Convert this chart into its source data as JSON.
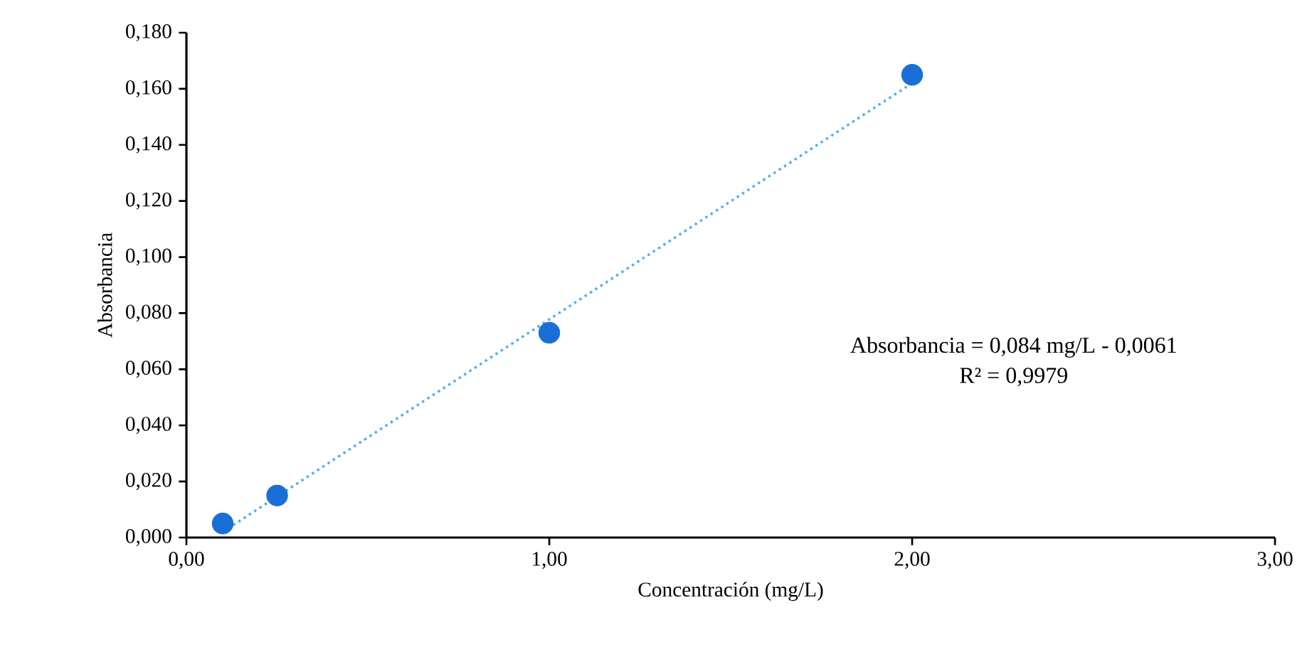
{
  "chart_data": {
    "type": "scatter",
    "xlabel": "Concentración (mg/L)",
    "ylabel": "Absorbancia",
    "xlim": [
      0,
      3
    ],
    "ylim": [
      0,
      0.18
    ],
    "xticks": [
      {
        "value": 0,
        "label": "0,00"
      },
      {
        "value": 1,
        "label": "1,00"
      },
      {
        "value": 2,
        "label": "2,00"
      },
      {
        "value": 3,
        "label": "3,00"
      }
    ],
    "yticks": [
      {
        "value": 0,
        "label": "0,000"
      },
      {
        "value": 0.02,
        "label": "0,020"
      },
      {
        "value": 0.04,
        "label": "0,040"
      },
      {
        "value": 0.06,
        "label": "0,060"
      },
      {
        "value": 0.08,
        "label": "0,080"
      },
      {
        "value": 0.1,
        "label": "0,100"
      },
      {
        "value": 0.12,
        "label": "0,120"
      },
      {
        "value": 0.14,
        "label": "0,140"
      },
      {
        "value": 0.16,
        "label": "0,160"
      },
      {
        "value": 0.18,
        "label": "0,180"
      }
    ],
    "series": [
      {
        "type": "line",
        "x": [
          0.1,
          2.0
        ],
        "values": [
          0.002,
          0.162
        ],
        "color": "#4fb0e6",
        "line_style": "dotted",
        "marker": "none"
      },
      {
        "x": [
          0.1,
          0.25,
          1.0,
          2.0
        ],
        "values": [
          0.005,
          0.015,
          0.073,
          0.165
        ],
        "color": "#1a6fd6",
        "marker": "circle"
      }
    ],
    "annotations": [
      "Absorbancia = 0,084 mg/L - 0,0061",
      "R² = 0,9979"
    ]
  }
}
